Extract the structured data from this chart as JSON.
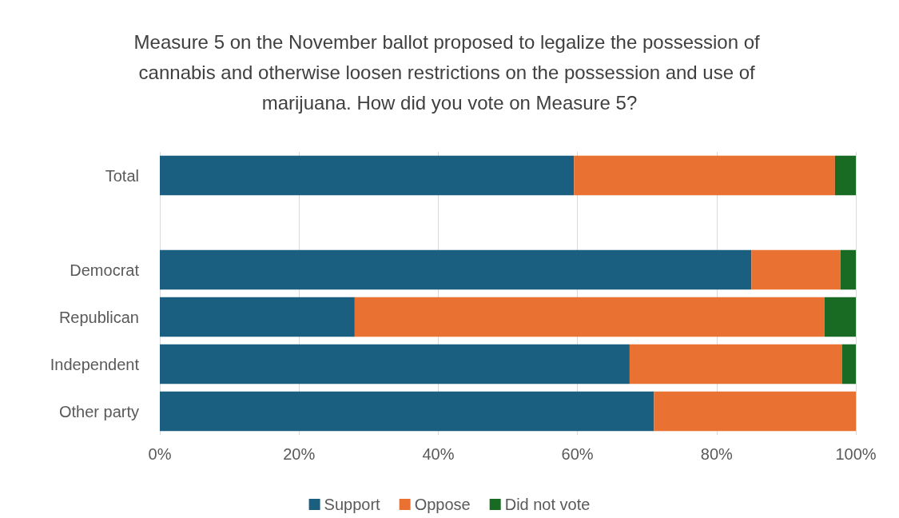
{
  "chart_data": {
    "type": "bar",
    "orientation": "horizontal",
    "stacked": true,
    "title": "Measure 5 on the November ballot proposed to legalize the possession of cannabis and otherwise loosen restrictions on the possession and use of marijuana. How did you vote on Measure 5?",
    "categories": [
      "Total",
      null,
      "Democrat",
      "Republican",
      "Independent",
      "Other party"
    ],
    "series": [
      {
        "name": "Support",
        "color": "#1b5f80",
        "values": [
          59.5,
          null,
          85,
          28,
          67.5,
          71
        ]
      },
      {
        "name": "Oppose",
        "color": "#e97132",
        "values": [
          37.5,
          null,
          12.8,
          67.5,
          30.5,
          29
        ]
      },
      {
        "name": "Did not vote",
        "color": "#196b24",
        "values": [
          3,
          null,
          2.2,
          4.5,
          2,
          null
        ]
      }
    ],
    "xlim": [
      0,
      100
    ],
    "xticks": [
      {
        "value": 0,
        "label": "0%"
      },
      {
        "value": 20,
        "label": "20%"
      },
      {
        "value": 40,
        "label": "40%"
      },
      {
        "value": 60,
        "label": "60%"
      },
      {
        "value": 80,
        "label": "80%"
      },
      {
        "value": 100,
        "label": "100%"
      }
    ],
    "grid": "x",
    "legend": "bottom"
  }
}
